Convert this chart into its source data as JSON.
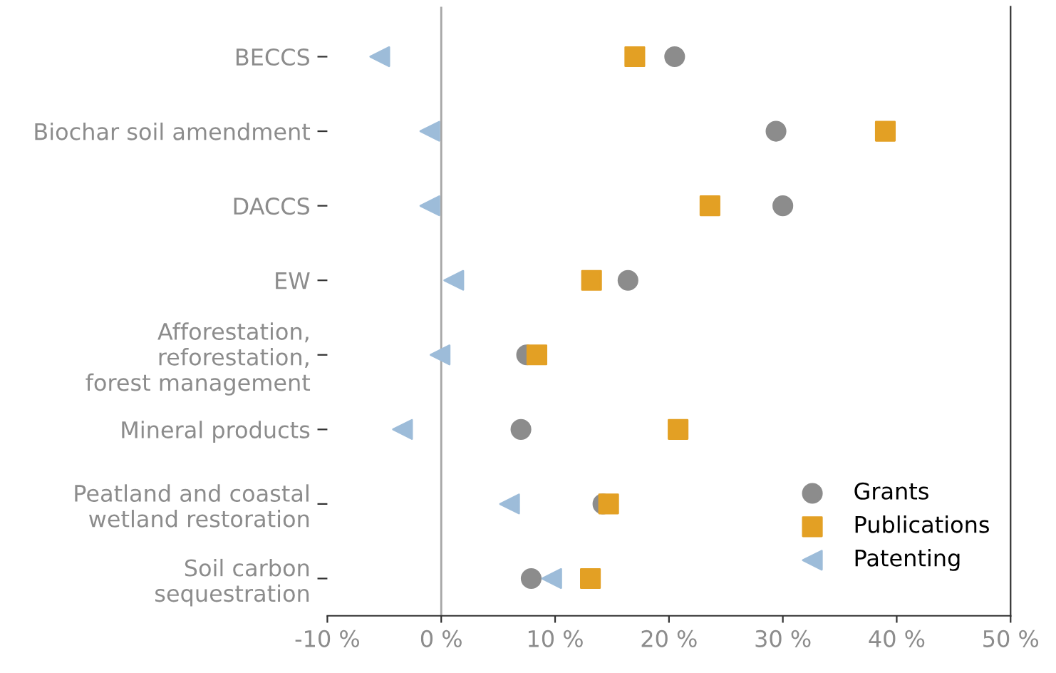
{
  "chart_data": {
    "type": "scatter",
    "orientation": "horizontal",
    "categories": [
      "BECCS",
      "Biochar soil amendment",
      "DACCS",
      "EW",
      "Afforestation,\nreforestation,\nforest management",
      "Mineral products",
      "Peatland and coastal\nwetland restoration",
      "Soil carbon\nsequestration"
    ],
    "series": [
      {
        "name": "Grants",
        "color": "#8c8c8c",
        "marker": "circle",
        "values": [
          20.5,
          29.4,
          30.0,
          16.4,
          7.5,
          7.0,
          14.2,
          7.9
        ]
      },
      {
        "name": "Publications",
        "color": "#e3a024",
        "marker": "square",
        "values": [
          17.0,
          39.0,
          23.6,
          13.2,
          8.4,
          20.8,
          14.7,
          13.1
        ]
      },
      {
        "name": "Patenting",
        "color": "#9dbcd9",
        "marker": "triangle",
        "values": [
          -5.4,
          -1.0,
          -1.0,
          1.1,
          -0.1,
          -3.4,
          6.0,
          9.7
        ]
      }
    ],
    "xlim": [
      -10,
      50
    ],
    "xticks": [
      {
        "value": -10,
        "label": "-10 %"
      },
      {
        "value": 0,
        "label": "0 %"
      },
      {
        "value": 10,
        "label": "10 %"
      },
      {
        "value": 20,
        "label": "20 %"
      },
      {
        "value": 30,
        "label": "30 %"
      },
      {
        "value": 40,
        "label": "40 %"
      },
      {
        "value": 50,
        "label": "50 %"
      }
    ],
    "ref_lines": [
      {
        "axis": "x",
        "value": 0,
        "label": null,
        "color": "#a6a6a6"
      }
    ],
    "grid": false,
    "legend": "bottom right"
  }
}
